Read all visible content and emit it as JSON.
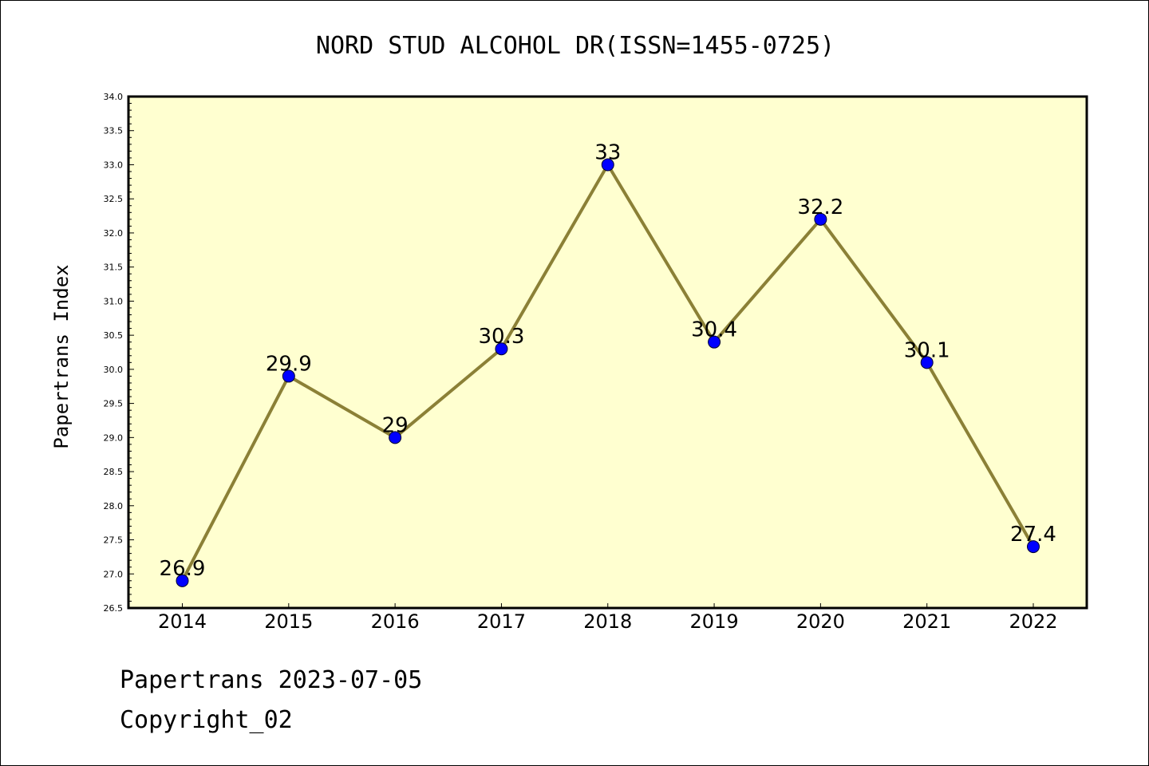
{
  "chart_data": {
    "type": "line",
    "title": "NORD STUD ALCOHOL DR(ISSN=1455-0725)",
    "xlabel": "",
    "ylabel": "Papertrans Index",
    "categories": [
      "2014",
      "2015",
      "2016",
      "2017",
      "2018",
      "2019",
      "2020",
      "2021",
      "2022"
    ],
    "series": [
      {
        "values": [
          26.9,
          29.9,
          29,
          30.3,
          33,
          30.4,
          32.2,
          30.1,
          27.4
        ],
        "data_labels": [
          "26.9",
          "29.9",
          "29",
          "30.3",
          "33",
          "30.4",
          "32.2",
          "30.1",
          "27.4"
        ]
      }
    ],
    "ylim": [
      26.5,
      34.0
    ],
    "yticks": [
      "26.5",
      "27.0",
      "27.5",
      "28.0",
      "28.5",
      "29.0",
      "29.5",
      "30.0",
      "30.5",
      "31.0",
      "31.5",
      "32.0",
      "32.5",
      "33.0",
      "33.5",
      "34.0"
    ],
    "grid": false,
    "legend": "none",
    "colors": {
      "plot_background": "#ffffd0",
      "line": "#8b8036",
      "marker": "#0000ff"
    }
  },
  "footer": {
    "date_line": "Papertrans 2023-07-05",
    "copyright_line": "Copyright_02"
  }
}
